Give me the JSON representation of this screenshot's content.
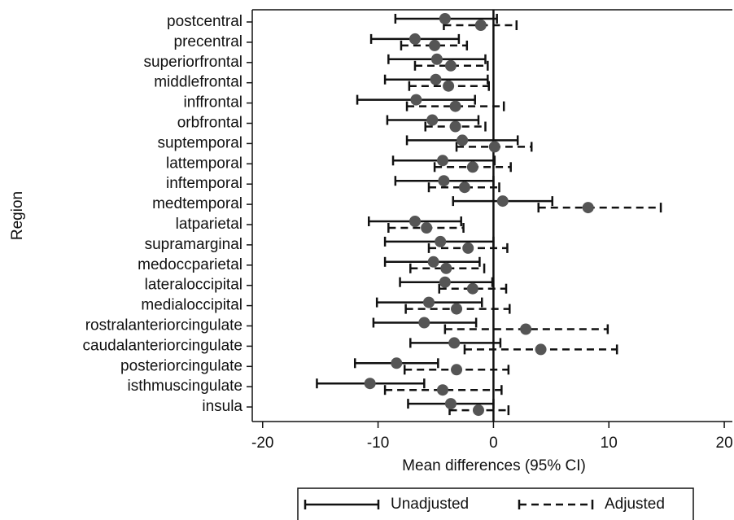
{
  "chart_data": {
    "type": "forest",
    "x_label": "Mean differences (95% CI)",
    "y_label": "Region",
    "categories": [
      "postcentral",
      "precentral",
      "superiorfrontal",
      "middlefrontal",
      "inffrontal",
      "orbfrontal",
      "suptemporal",
      "lattemporal",
      "inftemporal",
      "medtemporal",
      "latparietal",
      "supramarginal",
      "medoccparietal",
      "lateraloccipital",
      "medialoccipital",
      "rostralanteriorcingulate",
      "caudalanteriorcingulate",
      "posteriorcingulate",
      "isthmuscingulate",
      "insula"
    ],
    "series": [
      {
        "name": "Unadjusted",
        "color": "#111111",
        "dash": false,
        "values": [
          -4.2,
          -6.8,
          -4.9,
          -5.0,
          -6.7,
          -5.3,
          -2.7,
          -4.4,
          -4.3,
          0.8,
          -6.8,
          -4.6,
          -5.2,
          -4.2,
          -5.6,
          -6.0,
          -3.4,
          -8.4,
          -10.7,
          -3.7
        ],
        "lower": [
          -8.5,
          -10.6,
          -9.1,
          -9.4,
          -11.8,
          -9.2,
          -7.5,
          -8.7,
          -8.5,
          -3.5,
          -10.8,
          -9.4,
          -9.4,
          -8.1,
          -10.1,
          -10.4,
          -7.2,
          -12.0,
          -15.3,
          -7.4
        ],
        "upper": [
          0.3,
          -3.0,
          -0.7,
          -0.5,
          -1.6,
          -1.3,
          2.1,
          0.1,
          0,
          5.1,
          -2.8,
          0,
          -1.2,
          -0.1,
          -1.0,
          -1.5,
          0.6,
          -4.8,
          -6.0,
          0
        ]
      },
      {
        "name": "Adjusted",
        "color": "#111111",
        "dash": true,
        "values": [
          -1.1,
          -5.1,
          -3.7,
          -3.9,
          -3.3,
          -3.3,
          0.1,
          -1.8,
          -2.5,
          8.2,
          -5.8,
          -2.2,
          -4.1,
          -1.8,
          -3.2,
          2.8,
          4.1,
          -3.2,
          -4.4,
          -1.3
        ],
        "lower": [
          -4.3,
          -8.0,
          -6.8,
          -7.3,
          -7.5,
          -5.9,
          -3.2,
          -5.1,
          -5.6,
          3.9,
          -9.1,
          -5.6,
          -7.2,
          -4.7,
          -7.6,
          -4.2,
          -2.5,
          -7.7,
          -9.4,
          -3.8
        ],
        "upper": [
          2.0,
          -2.3,
          -0.5,
          -0.4,
          0.9,
          -0.7,
          3.3,
          1.5,
          0.5,
          14.5,
          -2.6,
          1.2,
          -0.8,
          1.1,
          1.4,
          9.9,
          10.7,
          1.3,
          0.7,
          1.3
        ]
      }
    ],
    "xlim": [
      -20.9,
      20.7
    ],
    "xticks": [
      -20,
      -10,
      0,
      10,
      20
    ],
    "xline": 0,
    "marker_color": "#555555"
  }
}
